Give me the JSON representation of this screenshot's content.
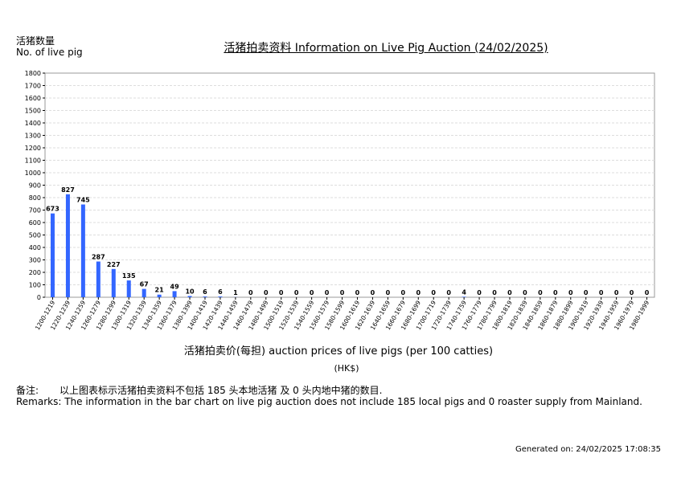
{
  "header": {
    "ylabel_cn": "活猪数量",
    "ylabel_en": "No. of live pig",
    "title": "活猪拍卖资料 Information on Live Pig Auction (24/02/2025)"
  },
  "footer": {
    "xlabel": "活猪拍卖价(每担) auction prices of live pigs (per 100 catties)",
    "unit": "(HK$)",
    "remark_cn_label": "备注:",
    "remark_cn": "以上图表标示活猪拍卖资料不包括 185 头本地活猪 及 0 头内地中猪的数目.",
    "remark_en": "Remarks: The information in the bar chart on live pig auction does not include 185 local pigs and 0 roaster supply from Mainland.",
    "generated": "Generated on: 24/02/2025 17:08:35"
  },
  "colors": {
    "bar": "#3366ff",
    "grid": "#dddddd",
    "axis": "#999999"
  },
  "chart_data": {
    "type": "bar",
    "title": "活猪拍卖资料 Information on Live Pig Auction (24/02/2025)",
    "xlabel": "活猪拍卖价(每担) auction prices of live pigs (per 100 catties)",
    "ylabel": "No. of live pig",
    "ylim": [
      0,
      1800
    ],
    "yticks": [
      0,
      100,
      200,
      300,
      400,
      500,
      600,
      700,
      800,
      900,
      1000,
      1100,
      1200,
      1300,
      1400,
      1500,
      1600,
      1700,
      1800
    ],
    "grid": true,
    "categories": [
      "1200-1219",
      "1220-1239",
      "1240-1259",
      "1260-1279",
      "1280-1299",
      "1300-1319",
      "1320-1339",
      "1340-1359",
      "1360-1379",
      "1380-1399",
      "1400-1419",
      "1420-1439",
      "1440-1459",
      "1460-1479",
      "1480-1499",
      "1500-1519",
      "1520-1539",
      "1540-1559",
      "1560-1579",
      "1580-1599",
      "1600-1619",
      "1620-1639",
      "1640-1659",
      "1660-1679",
      "1680-1699",
      "1700-1719",
      "1720-1739",
      "1740-1759",
      "1760-1779",
      "1780-1799",
      "1800-1819",
      "1820-1839",
      "1840-1859",
      "1860-1879",
      "1880-1899",
      "1900-1919",
      "1920-1939",
      "1940-1959",
      "1960-1979",
      "1980-1999"
    ],
    "values": [
      673,
      827,
      745,
      287,
      227,
      135,
      67,
      21,
      49,
      10,
      6,
      6,
      1,
      0,
      0,
      0,
      0,
      0,
      0,
      0,
      0,
      0,
      0,
      0,
      0,
      0,
      0,
      4,
      0,
      0,
      0,
      0,
      0,
      0,
      0,
      0,
      0,
      0,
      0,
      0
    ]
  }
}
